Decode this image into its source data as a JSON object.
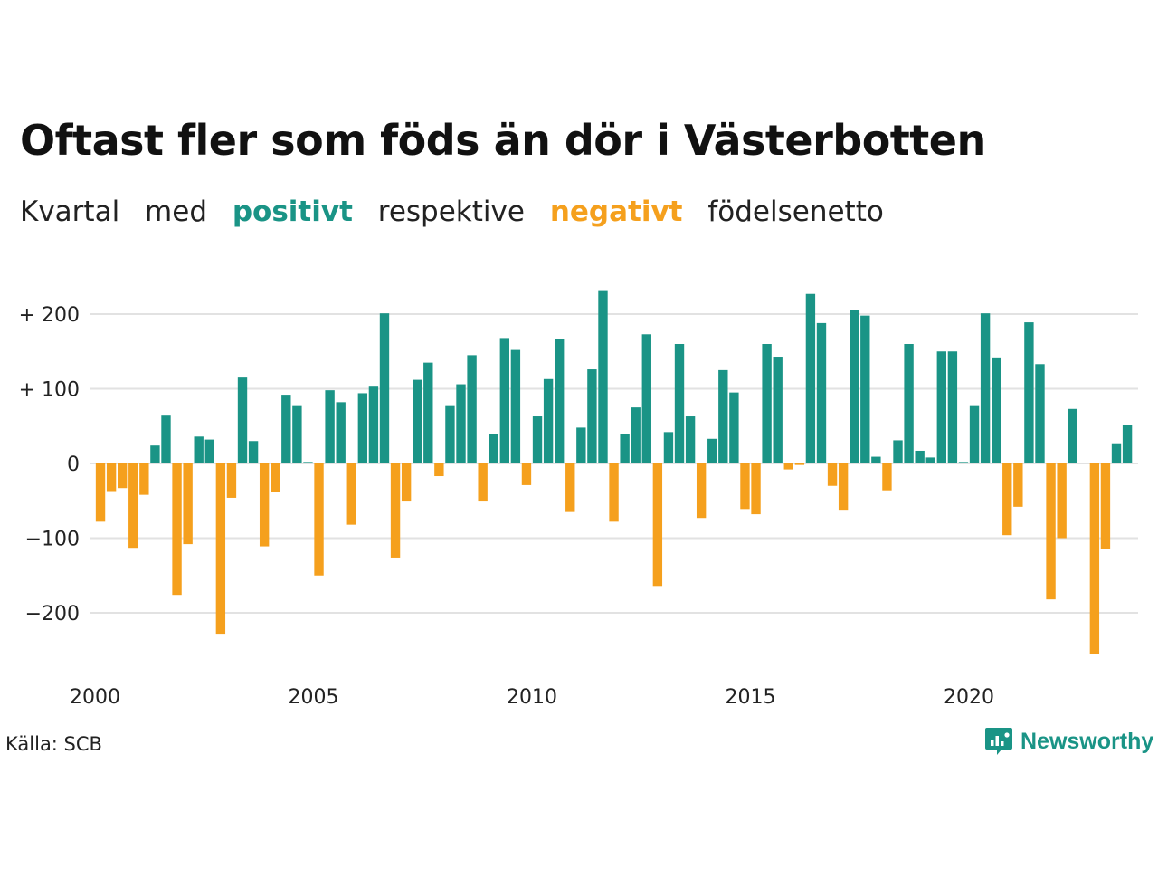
{
  "title": "Oftast fler som föds än dör i Västerbotten",
  "subtitle": {
    "part1": "Kvartal",
    "part2": "med",
    "positive_word": "positivt",
    "part3": "respektive",
    "negative_word": "negativt",
    "part4": "födelsenetto"
  },
  "colors": {
    "positive": "#1a9486",
    "negative": "#f5a01d",
    "grid": "#e2e2e2",
    "text": "#111111"
  },
  "source": "Källa: SCB",
  "brand": {
    "name": "Newsworthy",
    "icon": "bar-chart-speech-bubble-icon"
  },
  "chart_data": {
    "type": "bar",
    "x_start": 2000,
    "x_period": "quarter",
    "ylim": [
      -270,
      240
    ],
    "grid": true,
    "y_ticks": [
      {
        "value": 200,
        "label": "+ 200"
      },
      {
        "value": 100,
        "label": "+ 100"
      },
      {
        "value": 0,
        "label": "0"
      },
      {
        "value": -100,
        "label": "−100"
      },
      {
        "value": -200,
        "label": "−200"
      }
    ],
    "x_ticks": [
      {
        "value": 2000,
        "label": "2000"
      },
      {
        "value": 2005,
        "label": "2005"
      },
      {
        "value": 2010,
        "label": "2010"
      },
      {
        "value": 2015,
        "label": "2015"
      },
      {
        "value": 2020,
        "label": "2020"
      }
    ],
    "values": [
      -78,
      -37,
      -33,
      -113,
      -42,
      24,
      64,
      -176,
      -108,
      36,
      32,
      -228,
      -46,
      115,
      30,
      -111,
      -38,
      92,
      78,
      2,
      -150,
      98,
      82,
      -82,
      94,
      104,
      201,
      -126,
      -51,
      112,
      135,
      -17,
      78,
      106,
      145,
      -51,
      40,
      168,
      152,
      -29,
      63,
      113,
      167,
      -65,
      48,
      126,
      232,
      -78,
      40,
      75,
      173,
      -164,
      42,
      160,
      63,
      -73,
      33,
      125,
      95,
      -61,
      -68,
      160,
      143,
      -8,
      -2,
      227,
      188,
      -30,
      -62,
      205,
      198,
      9,
      -36,
      31,
      160,
      17,
      8,
      150,
      150,
      2,
      78,
      201,
      142,
      -96,
      -58,
      189,
      133,
      -182,
      -100,
      73,
      0,
      -255,
      -114,
      27,
      51
    ]
  }
}
